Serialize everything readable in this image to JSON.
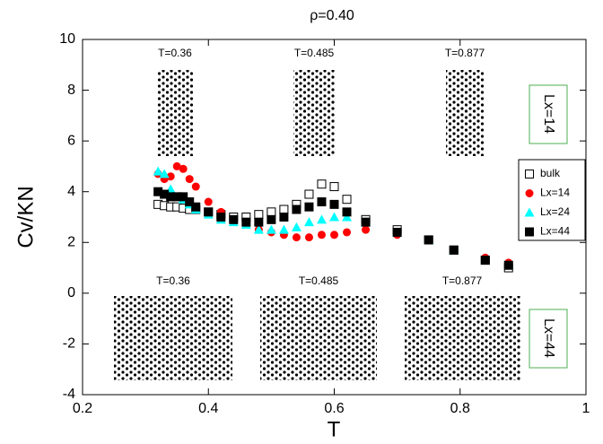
{
  "chart_data": {
    "type": "scatter",
    "title": "ρ=0.40",
    "xlabel": "T",
    "ylabel": "Cv/KN",
    "xlim": [
      0.2,
      1
    ],
    "xticks": [
      0.2,
      0.4,
      0.6,
      0.8,
      1
    ],
    "ylim": [
      -4,
      10
    ],
    "yticks": [
      -4,
      -2,
      0,
      2,
      4,
      6,
      8,
      10
    ],
    "x": [
      0.32,
      0.33,
      0.34,
      0.35,
      0.36,
      0.37,
      0.38,
      0.4,
      0.42,
      0.44,
      0.46,
      0.48,
      0.5,
      0.52,
      0.54,
      0.56,
      0.58,
      0.6,
      0.62,
      0.65,
      0.7,
      0.75,
      0.79,
      0.84,
      0.877
    ],
    "series": [
      {
        "name": "bulk",
        "color": "#000000",
        "marker": "open-square",
        "values": [
          3.5,
          3.45,
          3.4,
          3.4,
          3.35,
          3.3,
          3.3,
          3.2,
          3.1,
          3.0,
          3.0,
          3.1,
          3.2,
          3.3,
          3.5,
          3.9,
          4.3,
          4.2,
          3.7,
          2.9,
          2.5,
          2.1,
          1.7,
          1.3,
          1.0
        ]
      },
      {
        "name": "Lx=14",
        "color": "#ff0000",
        "marker": "circle",
        "values": [
          4.7,
          4.5,
          4.6,
          5.0,
          4.9,
          4.5,
          4.2,
          3.6,
          3.2,
          2.9,
          2.7,
          2.5,
          2.4,
          2.3,
          2.2,
          2.2,
          2.3,
          2.3,
          2.4,
          2.5,
          2.3,
          2.1,
          1.7,
          1.4,
          1.2
        ]
      },
      {
        "name": "Lx=24",
        "color": "#00ffff",
        "marker": "triangle",
        "values": [
          4.8,
          4.7,
          4.1,
          3.8,
          3.7,
          3.5,
          3.3,
          3.1,
          2.9,
          2.8,
          2.7,
          2.5,
          2.5,
          2.5,
          2.6,
          2.8,
          2.9,
          3.0,
          3.0,
          2.8,
          2.4,
          2.1,
          1.7,
          1.3,
          1.1
        ]
      },
      {
        "name": "Lx=44",
        "color": "#000000",
        "marker": "square",
        "values": [
          4.0,
          3.9,
          3.8,
          3.8,
          3.8,
          3.6,
          3.4,
          3.2,
          3.0,
          2.9,
          2.8,
          2.8,
          2.9,
          3.0,
          3.3,
          3.4,
          3.6,
          3.5,
          3.2,
          2.8,
          2.4,
          2.1,
          1.7,
          1.3,
          1.1
        ]
      }
    ],
    "annotations": [
      "T=0.36",
      "T=0.485",
      "T=0.877",
      "T=0.36",
      "T=0.485",
      "T=0.877",
      "Lx=14",
      "Lx=44"
    ]
  }
}
